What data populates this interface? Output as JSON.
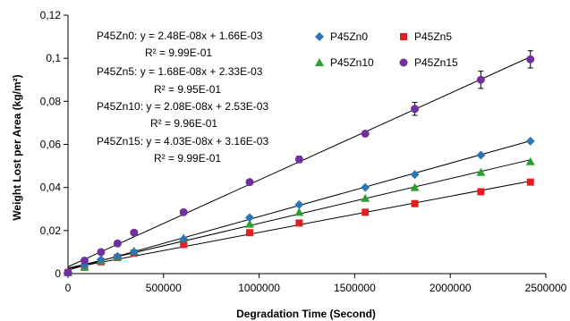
{
  "chart_data": {
    "type": "scatter",
    "title": "",
    "xlabel": "Degradation Time (Second)",
    "ylabel": "Weight Lost per Area (kg/m²)",
    "xlim": [
      0,
      2500000
    ],
    "ylim": [
      0,
      0.12
    ],
    "x_ticks": [
      "0",
      "500000",
      "1000000",
      "1500000",
      "2000000",
      "2500000"
    ],
    "y_ticks": [
      "0",
      "0,02",
      "0,04",
      "0,06",
      "0,08",
      "0,1",
      "0,12"
    ],
    "grid": false,
    "legend_position": "top-right",
    "series": [
      {
        "name": "P45Zn0",
        "color": "#2e75b6",
        "marker": "diamond",
        "x": [
          0,
          86400,
          172800,
          259200,
          345600,
          604800,
          950400,
          1209600,
          1555200,
          1814400,
          2160000,
          2419200
        ],
        "y": [
          0.0005,
          0.004,
          0.0065,
          0.008,
          0.01,
          0.016,
          0.026,
          0.032,
          0.04,
          0.046,
          0.055,
          0.0615
        ],
        "fit": {
          "slope": 2.48e-08,
          "intercept": 0.00166
        },
        "equation": "P45Zn0: y = 2.48E-08x + 1.66E-03",
        "r2": "R² = 9.99E-01"
      },
      {
        "name": "P45Zn5",
        "color": "#e02020",
        "marker": "square",
        "x": [
          0,
          86400,
          172800,
          259200,
          345600,
          604800,
          950400,
          1209600,
          1555200,
          1814400,
          2160000,
          2419200
        ],
        "y": [
          0.0005,
          0.003,
          0.0055,
          0.0075,
          0.0095,
          0.0135,
          0.019,
          0.0235,
          0.0285,
          0.0325,
          0.038,
          0.0425
        ],
        "fit": {
          "slope": 1.68e-08,
          "intercept": 0.00233
        },
        "equation": "P45Zn5: y = 1.68E-08x + 2.33E-03",
        "r2": "R² = 9.95E-01"
      },
      {
        "name": "P45Zn10",
        "color": "#2ca02c",
        "marker": "triangle",
        "x": [
          0,
          86400,
          172800,
          259200,
          345600,
          604800,
          950400,
          1209600,
          1555200,
          1814400,
          2160000,
          2419200
        ],
        "y": [
          0.0005,
          0.003,
          0.006,
          0.008,
          0.0105,
          0.0165,
          0.023,
          0.0285,
          0.035,
          0.04,
          0.047,
          0.052
        ],
        "fit": {
          "slope": 2.08e-08,
          "intercept": 0.00253
        },
        "equation": "P45Zn10: y = 2.08E-08x + 2.53E-03",
        "r2": "R² = 9.96E-01"
      },
      {
        "name": "P45Zn15",
        "color": "#7030a0",
        "marker": "circle",
        "x": [
          0,
          86400,
          172800,
          259200,
          345600,
          604800,
          950400,
          1209600,
          1555200,
          1814400,
          2160000,
          2419200
        ],
        "y": [
          0.0005,
          0.006,
          0.01,
          0.014,
          0.019,
          0.0285,
          0.0425,
          0.053,
          0.065,
          0.0765,
          0.09,
          0.0995
        ],
        "err": [
          0,
          0,
          0,
          0,
          0.001,
          0.001,
          0.001,
          0.0015,
          0.001,
          0.003,
          0.004,
          0.004
        ],
        "fit": {
          "slope": 4.03e-08,
          "intercept": 0.00316
        },
        "equation": "P45Zn15: y = 4.03E-08x + 3.16E-03",
        "r2": "R² = 9.99E-01"
      }
    ]
  }
}
